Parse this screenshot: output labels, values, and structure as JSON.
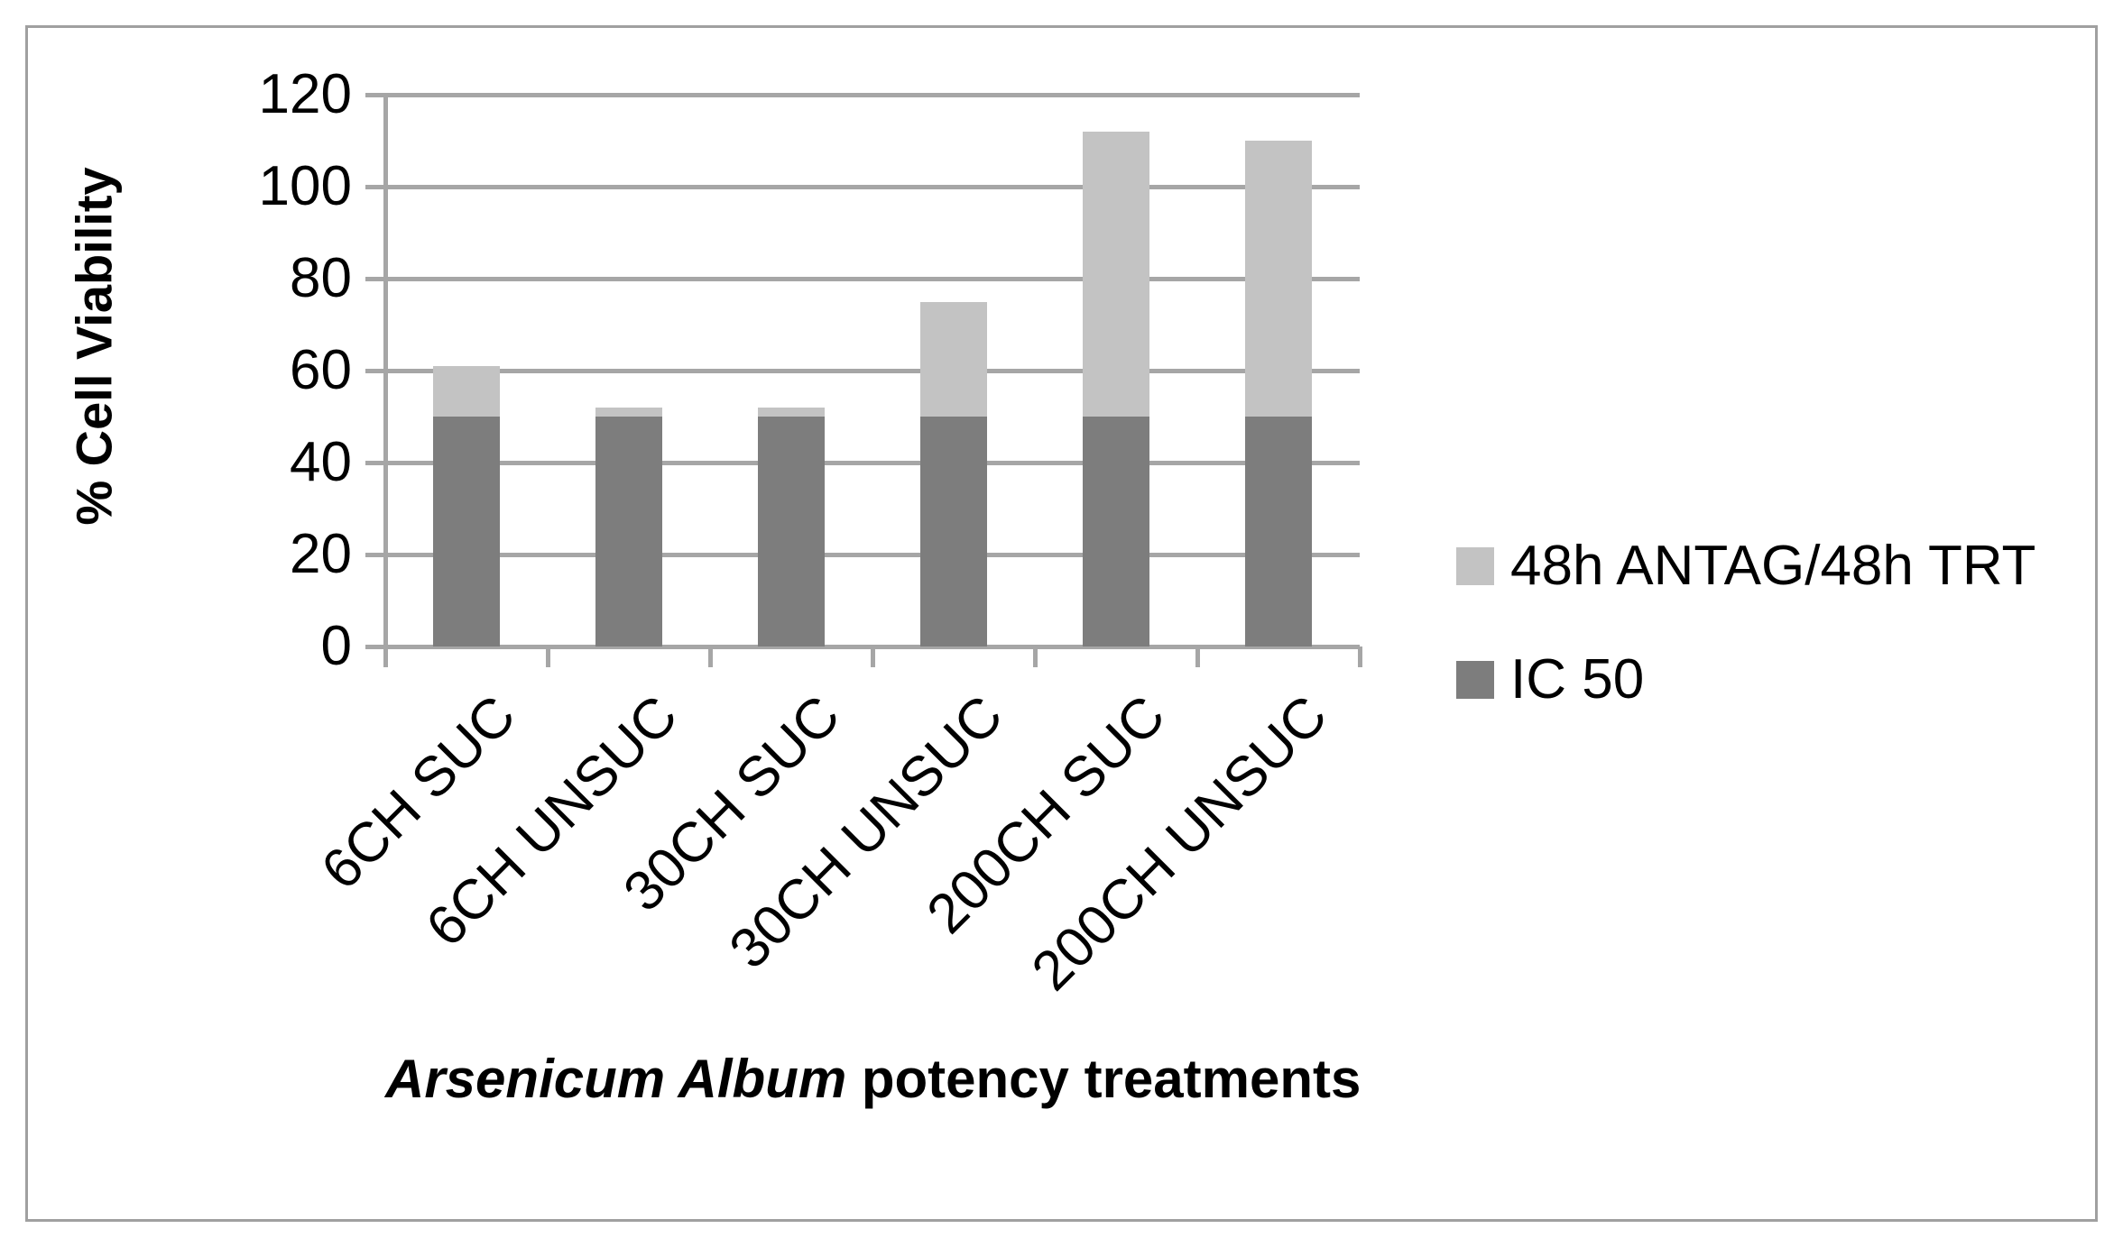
{
  "chart_data": {
    "type": "bar",
    "stacked": true,
    "title": "",
    "categories": [
      "6CH SUC",
      "6CH UNSUC",
      "30CH SUC",
      "30CH UNSUC",
      "200CH SUC",
      "200CH UNSUC"
    ],
    "series": [
      {
        "name": "IC 50",
        "color": "#7d7d7d",
        "values": [
          50,
          50,
          50,
          50,
          50,
          50
        ]
      },
      {
        "name": "48h ANTAG/48h TRT",
        "color": "#c3c3c3",
        "values": [
          11,
          2,
          2,
          25,
          62,
          60
        ]
      }
    ],
    "stack_totals": [
      61,
      52,
      52,
      75,
      112,
      110
    ],
    "ylabel": "% Cell Viability",
    "xlabel_italic": "Arsenicum Album",
    "xlabel_rest": " potency treatments",
    "ylim": [
      0,
      120
    ],
    "yticks": [
      0,
      20,
      40,
      60,
      80,
      100,
      120
    ],
    "grid": true,
    "legend_position": "right",
    "legend": [
      {
        "label": "48h ANTAG/48h TRT",
        "color": "#c3c3c3"
      },
      {
        "label": "IC 50",
        "color": "#7d7d7d"
      }
    ]
  },
  "colors": {
    "gridline": "#a6a6a6",
    "axis": "#a6a6a6",
    "frame_border": "#a0a0a0",
    "background": "#ffffff",
    "text": "#000000"
  }
}
